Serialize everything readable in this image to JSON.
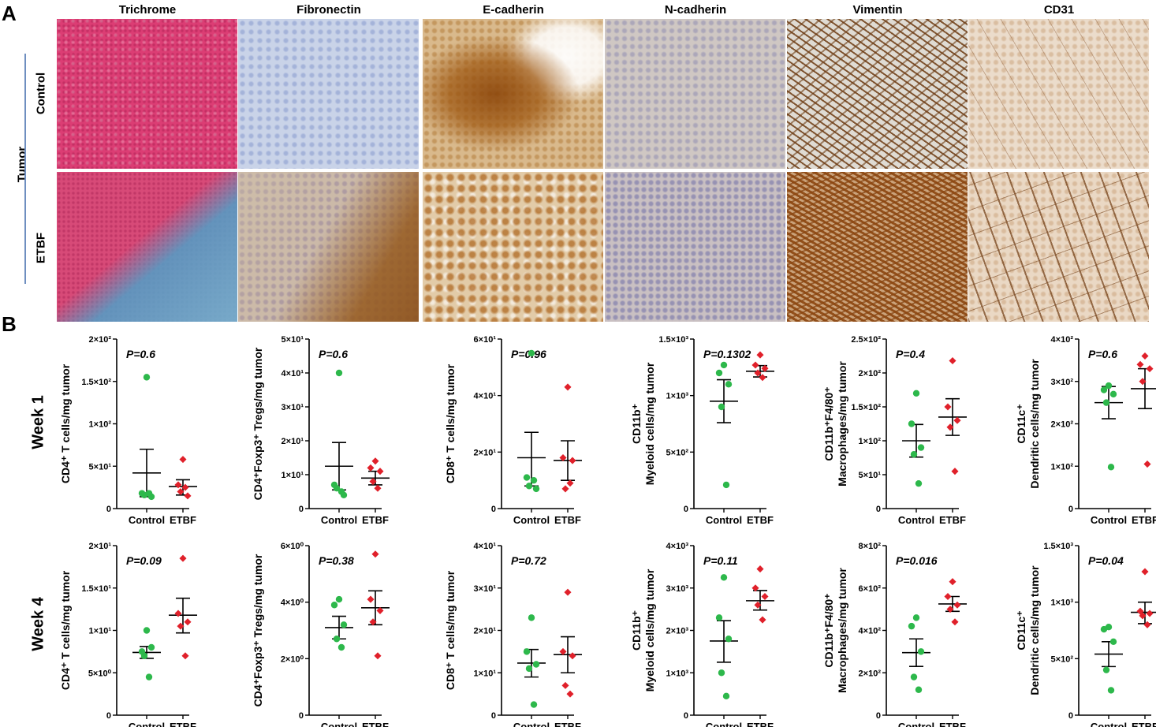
{
  "panel_a": {
    "letter": "A",
    "stains": [
      "Trichrome",
      "Fibronectin",
      "E-cadherin",
      "N-cadherin",
      "Vimentin",
      "CD31"
    ],
    "group_label": "Tumor",
    "rows": [
      "Control",
      "ETBF"
    ],
    "tile_styles": [
      [
        "trichrome-control",
        "blue-light",
        "ecad-control",
        "ncad-control",
        "vimentin-control",
        "cd31-control"
      ],
      [
        "trichrome-etbf",
        "fibronectin-etbf",
        "ecad-etbf",
        "ncad-etbf",
        "vimentin-etbf",
        "cd31-etbf"
      ]
    ]
  },
  "panel_b": {
    "letter": "B",
    "week_labels": [
      "Week 1",
      "Week 4"
    ],
    "colors": {
      "control": "#2db84b",
      "etbf": "#e0202a"
    }
  },
  "chart_data": [
    {
      "type": "scatter",
      "row": 0,
      "col": 0,
      "p": "P=0.6",
      "ylabel": [
        "CD4⁺ T cells/mg tumor"
      ],
      "ylim": [
        0,
        200
      ],
      "ticks": [
        0,
        50,
        100,
        150,
        200
      ],
      "tick_labels": [
        "0",
        "5×10¹",
        "1×10²",
        "1.5×10²",
        "2×10²"
      ],
      "categories": [
        "Control",
        "ETBF"
      ],
      "series": [
        {
          "name": "Control",
          "values": [
            155,
            18,
            14,
            16,
            18
          ],
          "mean": 42,
          "sem": [
            14,
            70
          ]
        },
        {
          "name": "ETBF",
          "values": [
            58,
            28,
            15,
            20,
            25
          ],
          "mean": 26,
          "sem": [
            16,
            34
          ]
        }
      ]
    },
    {
      "type": "scatter",
      "row": 0,
      "col": 1,
      "p": "P=0.6",
      "ylabel": [
        "CD4⁺Foxp3⁺ Tregs/mg tumor"
      ],
      "ylim": [
        0,
        50
      ],
      "ticks": [
        0,
        10,
        20,
        30,
        40,
        50
      ],
      "tick_labels": [
        "0",
        "1×10¹",
        "2×10¹",
        "3×10¹",
        "4×10¹",
        "5×10¹"
      ],
      "categories": [
        "Control",
        "ETBF"
      ],
      "series": [
        {
          "name": "Control",
          "values": [
            40,
            7,
            4,
            6,
            5
          ],
          "mean": 12.5,
          "sem": [
            5.5,
            19.5
          ]
        },
        {
          "name": "ETBF",
          "values": [
            14,
            12,
            11,
            8,
            6
          ],
          "mean": 9,
          "sem": [
            7,
            11
          ]
        }
      ]
    },
    {
      "type": "scatter",
      "row": 0,
      "col": 2,
      "p": "P=0.96",
      "ylabel": [
        "CD8⁺ T cells/mg tumor"
      ],
      "ylim": [
        0,
        60
      ],
      "ticks": [
        0,
        20,
        40,
        60
      ],
      "tick_labels": [
        "0",
        "2×10¹",
        "4×10¹",
        "6×10¹"
      ],
      "categories": [
        "Control",
        "ETBF"
      ],
      "series": [
        {
          "name": "Control",
          "values": [
            55,
            11,
            7,
            8,
            10
          ],
          "mean": 18,
          "sem": [
            8,
            27
          ]
        },
        {
          "name": "ETBF",
          "values": [
            43,
            18,
            17,
            7,
            9
          ],
          "mean": 17,
          "sem": [
            10,
            24
          ]
        }
      ]
    },
    {
      "type": "scatter",
      "row": 0,
      "col": 3,
      "p": "P=0.1302",
      "ylabel": [
        "CD11b⁺",
        "Myeloid cells/mg tumor"
      ],
      "ylim": [
        0,
        1500
      ],
      "ticks": [
        0,
        500,
        1000,
        1500
      ],
      "tick_labels": [
        "0",
        "5×10²",
        "1×10³",
        "1.5×10³"
      ],
      "categories": [
        "Control",
        "ETBF"
      ],
      "series": [
        {
          "name": "Control",
          "values": [
            1270,
            1200,
            1100,
            900,
            210
          ],
          "mean": 950,
          "sem": [
            760,
            1140
          ]
        },
        {
          "name": "ETBF",
          "values": [
            1360,
            1270,
            1240,
            1200,
            1160
          ],
          "mean": 1215,
          "sem": [
            1165,
            1265
          ]
        }
      ]
    },
    {
      "type": "scatter",
      "row": 0,
      "col": 4,
      "p": "P=0.4",
      "ylabel": [
        "CD11b⁺F4/80⁺",
        "Macrophages/mg tumor"
      ],
      "ylim": [
        0,
        250
      ],
      "ticks": [
        0,
        50,
        100,
        150,
        200,
        250
      ],
      "tick_labels": [
        "0",
        "5×10¹",
        "1×10²",
        "1.5×10²",
        "2×10²",
        "2.5×10²"
      ],
      "categories": [
        "Control",
        "ETBF"
      ],
      "series": [
        {
          "name": "Control",
          "values": [
            170,
            125,
            90,
            80,
            37
          ],
          "mean": 100,
          "sem": [
            76,
            124
          ]
        },
        {
          "name": "ETBF",
          "values": [
            218,
            150,
            130,
            120,
            55
          ],
          "mean": 135,
          "sem": [
            108,
            162
          ]
        }
      ]
    },
    {
      "type": "scatter",
      "row": 0,
      "col": 5,
      "p": "P=0.6",
      "ylabel": [
        "CD11c⁺",
        "Dendritic cells/mg tumor"
      ],
      "ylim": [
        0,
        400
      ],
      "ticks": [
        0,
        100,
        200,
        300,
        400
      ],
      "tick_labels": [
        "0",
        "1×10²",
        "2×10²",
        "3×10²",
        "4×10²"
      ],
      "categories": [
        "Control",
        "ETBF"
      ],
      "series": [
        {
          "name": "Control",
          "values": [
            290,
            280,
            270,
            250,
            98
          ],
          "mean": 250,
          "sem": [
            212,
            288
          ]
        },
        {
          "name": "ETBF",
          "values": [
            360,
            340,
            330,
            300,
            105
          ],
          "mean": 283,
          "sem": [
            236,
            330
          ]
        }
      ]
    },
    {
      "type": "scatter",
      "row": 1,
      "col": 0,
      "p": "P=0.09",
      "ylabel": [
        "CD4⁺ T cells/mg tumor"
      ],
      "ylim": [
        0,
        20
      ],
      "ticks": [
        0,
        5,
        10,
        15,
        20
      ],
      "tick_labels": [
        "0",
        "5×10⁰",
        "1×10¹",
        "1.5×10¹",
        "2×10¹"
      ],
      "categories": [
        "Control",
        "ETBF"
      ],
      "series": [
        {
          "name": "Control",
          "values": [
            10,
            7.5,
            8,
            7,
            4.5
          ],
          "mean": 7.4,
          "sem": [
            6.7,
            8.1
          ]
        },
        {
          "name": "ETBF",
          "values": [
            18.5,
            12,
            11,
            10.5,
            7
          ],
          "mean": 11.8,
          "sem": [
            9.7,
            13.8
          ]
        }
      ]
    },
    {
      "type": "scatter",
      "row": 1,
      "col": 1,
      "p": "P=0.38",
      "ylabel": [
        "CD4⁺Foxp3⁺ Tregs/mg tumor"
      ],
      "ylim": [
        0,
        6
      ],
      "ticks": [
        0,
        2,
        4,
        6
      ],
      "tick_labels": [
        "0",
        "2×10⁰",
        "4×10⁰",
        "6×10⁰"
      ],
      "categories": [
        "Control",
        "ETBF"
      ],
      "series": [
        {
          "name": "Control",
          "values": [
            4.1,
            3.9,
            3.2,
            2.7,
            2.4
          ],
          "mean": 3.1,
          "sem": [
            2.7,
            3.5
          ]
        },
        {
          "name": "ETBF",
          "values": [
            5.7,
            4.1,
            3.7,
            3.3,
            2.1
          ],
          "mean": 3.8,
          "sem": [
            3.2,
            4.4
          ]
        }
      ]
    },
    {
      "type": "scatter",
      "row": 1,
      "col": 2,
      "p": "P=0.72",
      "ylabel": [
        "CD8⁺ T cells/mg tumor"
      ],
      "ylim": [
        0,
        40
      ],
      "ticks": [
        0,
        10,
        20,
        30,
        40
      ],
      "tick_labels": [
        "0",
        "1×10¹",
        "2×10¹",
        "3×10¹",
        "4×10¹"
      ],
      "categories": [
        "Control",
        "ETBF"
      ],
      "series": [
        {
          "name": "Control",
          "values": [
            23,
            15,
            12,
            11,
            2.5
          ],
          "mean": 12.3,
          "sem": [
            9,
            15.5
          ]
        },
        {
          "name": "ETBF",
          "values": [
            29,
            15,
            14,
            7,
            5
          ],
          "mean": 14.3,
          "sem": [
            10,
            18.5
          ]
        }
      ]
    },
    {
      "type": "scatter",
      "row": 1,
      "col": 3,
      "p": "P=0.11",
      "ylabel": [
        "CD11b⁺",
        "Myeloid cells/mg tumor"
      ],
      "ylim": [
        0,
        4000
      ],
      "ticks": [
        0,
        1000,
        2000,
        3000,
        4000
      ],
      "tick_labels": [
        "0",
        "1×10³",
        "2×10³",
        "3×10³",
        "4×10³"
      ],
      "categories": [
        "Control",
        "ETBF"
      ],
      "series": [
        {
          "name": "Control",
          "values": [
            3250,
            2300,
            1800,
            1000,
            450
          ],
          "mean": 1750,
          "sem": [
            1250,
            2230
          ]
        },
        {
          "name": "ETBF",
          "values": [
            3450,
            3000,
            2800,
            2600,
            2250
          ],
          "mean": 2700,
          "sem": [
            2480,
            2940
          ]
        }
      ]
    },
    {
      "type": "scatter",
      "row": 1,
      "col": 4,
      "p": "P=0.016",
      "ylabel": [
        "CD11b⁺F4/80⁺",
        "Macrophages/mg tumor"
      ],
      "ylim": [
        0,
        800
      ],
      "ticks": [
        0,
        200,
        400,
        600,
        800
      ],
      "tick_labels": [
        "0",
        "2×10²",
        "4×10²",
        "6×10²",
        "8×10²"
      ],
      "categories": [
        "Control",
        "ETBF"
      ],
      "series": [
        {
          "name": "Control",
          "values": [
            460,
            420,
            300,
            180,
            120
          ],
          "mean": 295,
          "sem": [
            230,
            360
          ]
        },
        {
          "name": "ETBF",
          "values": [
            630,
            560,
            520,
            500,
            440
          ],
          "mean": 525,
          "sem": [
            490,
            560
          ]
        }
      ]
    },
    {
      "type": "scatter",
      "row": 1,
      "col": 5,
      "p": "P=0.04",
      "ylabel": [
        "CD11c⁺",
        "Dendritic cells/mg tumor"
      ],
      "ylim": [
        0,
        1500
      ],
      "ticks": [
        0,
        500,
        1000,
        1500
      ],
      "tick_labels": [
        "0",
        "5×10²",
        "1×10³",
        "1.5×10³"
      ],
      "categories": [
        "Control",
        "ETBF"
      ],
      "series": [
        {
          "name": "Control",
          "values": [
            780,
            760,
            650,
            400,
            220
          ],
          "mean": 540,
          "sem": [
            430,
            650
          ]
        },
        {
          "name": "ETBF",
          "values": [
            1270,
            920,
            900,
            880,
            800
          ],
          "mean": 910,
          "sem": [
            810,
            1000
          ]
        }
      ]
    }
  ]
}
